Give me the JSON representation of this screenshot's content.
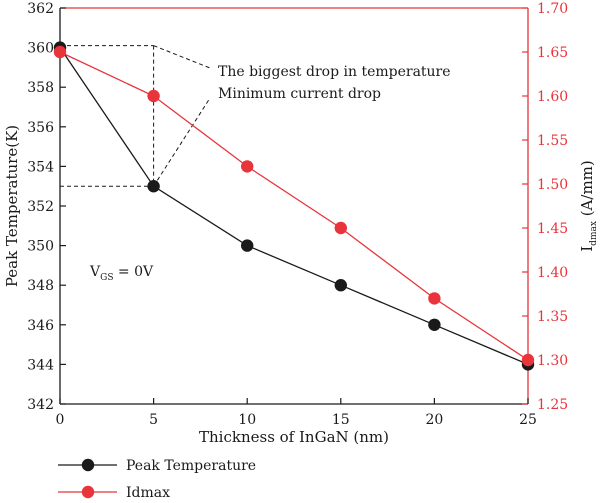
{
  "chart_data": {
    "type": "line",
    "x": [
      0,
      5,
      10,
      15,
      20,
      25
    ],
    "xlabel": "Thickness of InGaN (nm)",
    "xlim": [
      0,
      25
    ],
    "xticks": [
      "0",
      "5",
      "10",
      "15",
      "20",
      "25"
    ],
    "y_left": {
      "label": "Peak Temperature(K)",
      "lim": [
        342,
        362
      ],
      "ticks": [
        "342",
        "344",
        "346",
        "348",
        "350",
        "352",
        "354",
        "356",
        "358",
        "360",
        "362"
      ]
    },
    "y_right": {
      "label_main": "I",
      "label_sub": "dmax",
      "label_unit": " (A/mm)",
      "lim": [
        1.25,
        1.7
      ],
      "ticks": [
        "1.25",
        "1.30",
        "1.35",
        "1.40",
        "1.45",
        "1.50",
        "1.55",
        "1.60",
        "1.65",
        "1.70"
      ]
    },
    "series": [
      {
        "name": "Peak Temperature",
        "axis": "left",
        "color": "#1a1a1a",
        "values": [
          360,
          353,
          350,
          348,
          346,
          344
        ]
      },
      {
        "name": "Idmax",
        "axis": "right",
        "color": "#e8343a",
        "values": [
          1.65,
          1.6,
          1.52,
          1.45,
          1.37,
          1.3
        ]
      }
    ],
    "annotations": {
      "biggest_drop": "The biggest drop in temperature",
      "min_current_drop": "Minimum current drop",
      "vgs_main": "V",
      "vgs_sub": "GS",
      "vgs_value": " = 0V"
    },
    "grid": false,
    "legend_position": "bottom-left"
  }
}
